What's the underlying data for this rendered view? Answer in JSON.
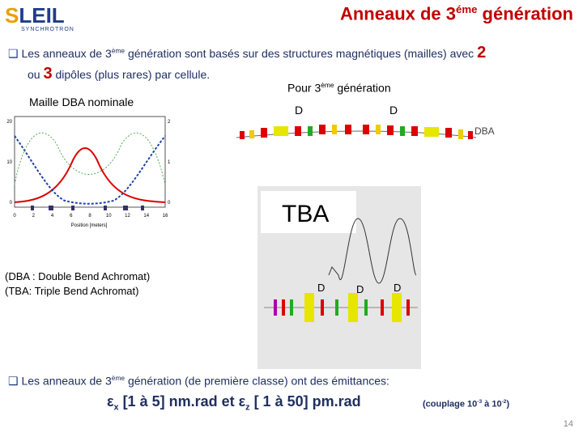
{
  "logo": {
    "first": "S",
    "rest": "LEIL",
    "tagline": "SYNCHROTRON"
  },
  "title": {
    "main": "Anneaux de 3",
    "sup": "éme",
    "rest": " génération"
  },
  "bullet1": {
    "text1": "Les anneaux de 3",
    "sup": "ème",
    "text2": " génération sont basés sur des structures magnétiques (mailles) avec ",
    "n1": "2",
    "text3": "ou ",
    "n2": "3",
    "text4": " dipôles (plus rares) par cellule."
  },
  "dba_plot": {
    "label": "Maille DBA nominale",
    "x_axis": "Position [meters]",
    "xticks": [
      "0",
      "2",
      "4",
      "6",
      "8",
      "10",
      "12",
      "14",
      "16"
    ],
    "yticks": [
      "0",
      "10",
      "20"
    ],
    "y2ticks": [
      "0",
      "1",
      "2"
    ]
  },
  "dba_lattice": {
    "heading1": "Pour 3",
    "sup": "ème",
    "heading2": " génération",
    "dipoles": [
      "D",
      "D"
    ],
    "label": "DBA"
  },
  "tba": {
    "label": "TBA",
    "dipoles": [
      "D",
      "D",
      "D"
    ]
  },
  "notes": [
    "(DBA : Double Bend Achromat)",
    "(TBA: Triple Bend Achromat)"
  ],
  "bullet2": {
    "text1": "Les anneaux de 3",
    "sup": "ème",
    "text2": " génération (de première classe) ont des émittances:"
  },
  "formula": {
    "eps1": "ε",
    "sub1": "x",
    "range1": " [1 à 5] nm.rad et ",
    "eps2": "ε",
    "sub2": "z",
    "range2": " [ 1 à 50] pm.rad",
    "c1": "(couplage 10",
    "e1": "-3",
    "c2": " à 10",
    "e2": "-2",
    "c3": ")"
  },
  "page_number": "14"
}
